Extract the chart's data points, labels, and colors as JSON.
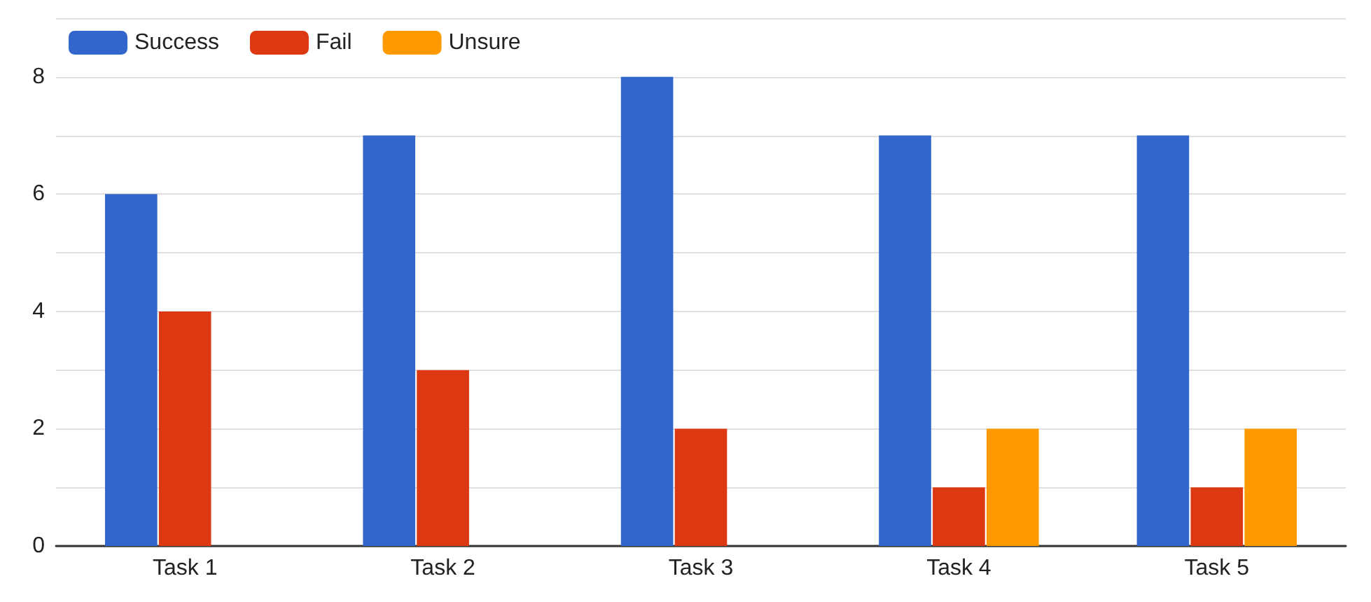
{
  "chart_data": {
    "type": "bar",
    "categories": [
      "Task 1",
      "Task 2",
      "Task 3",
      "Task 4",
      "Task 5"
    ],
    "series": [
      {
        "name": "Success",
        "color": "#3366cc",
        "values": [
          6,
          7,
          8,
          7,
          7
        ]
      },
      {
        "name": "Fail",
        "color": "#dc3912",
        "values": [
          4,
          3,
          2,
          1,
          1
        ]
      },
      {
        "name": "Unsure",
        "color": "#ff9900",
        "values": [
          0,
          0,
          0,
          2,
          2
        ]
      }
    ],
    "ylim": [
      0,
      9
    ],
    "yticks": [
      0,
      {
        "value": 1,
        "label": null
      },
      2,
      {
        "value": 3,
        "label": null
      },
      4,
      {
        "value": 5,
        "label": null
      },
      6,
      {
        "value": 7,
        "label": null
      },
      8,
      {
        "value": 9,
        "label": null
      }
    ],
    "grid": "y",
    "legend": "top left"
  }
}
